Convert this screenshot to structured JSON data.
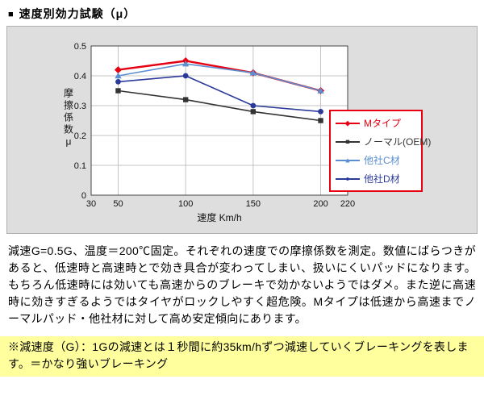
{
  "header": {
    "bullet": "■",
    "title": "速度別効力試験（μ）"
  },
  "chart_data": {
    "type": "line",
    "title": "",
    "xlabel": "速度 Km/h",
    "ylabel": "摩擦係数μ",
    "xlim": [
      30,
      220
    ],
    "ylim": [
      0,
      0.5
    ],
    "x_ticks": [
      30,
      50,
      100,
      150,
      200,
      220
    ],
    "y_ticks": [
      0,
      0.1,
      0.2,
      0.3,
      0.4,
      0.5
    ],
    "grid": true,
    "legend_position": "right-inside",
    "x": [
      50,
      100,
      150,
      200
    ],
    "series": [
      {
        "name": "Mタイプ",
        "color": "#e60012",
        "marker": "diamond",
        "values": [
          0.42,
          0.45,
          0.41,
          0.35
        ]
      },
      {
        "name": "ノーマル(OEM)",
        "color": "#333333",
        "marker": "square",
        "values": [
          0.35,
          0.32,
          0.28,
          0.25
        ]
      },
      {
        "name": "他社C材",
        "color": "#5b8fd0",
        "marker": "triangle",
        "values": [
          0.4,
          0.44,
          0.41,
          0.35
        ]
      },
      {
        "name": "他社D材",
        "color": "#2b3a99",
        "marker": "circle",
        "values": [
          0.38,
          0.4,
          0.3,
          0.28
        ]
      }
    ]
  },
  "description": "減速G=0.5G、温度＝200℃固定。それぞれの速度での摩擦係数を測定。数値にばらつきがあると、低速時と高速時とで効き具合が変わってしまい、扱いにくいパッドになります。もちろん低速時には効いても高速からのブレーキで効かないようではダメ。また逆に高速時に効きすぎるようではタイヤがロックしやすく超危険。Mタイプは低速から高速までノーマルパッド・他社材に対して高め安定傾向にあります。",
  "note": {
    "text": "※減速度（G）：1Gの減速とは１秒間に約35km/hずつ減速していくブレーキングを表します。＝かなり強いブレーキング",
    "highlight_color": "#ffff9e"
  }
}
